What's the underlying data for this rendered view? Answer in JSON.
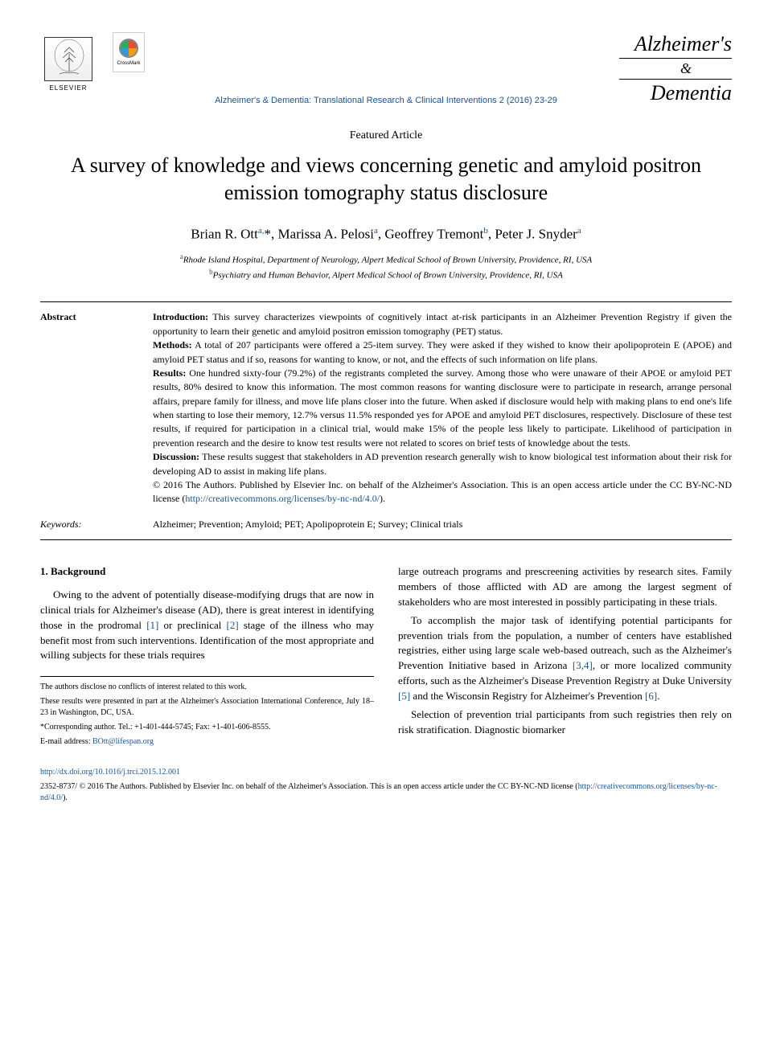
{
  "header": {
    "elsevier_label": "ELSEVIER",
    "crossmark_label": "CrossMark",
    "journal_logo": {
      "line1": "Alzheimer's",
      "line2": "&",
      "line3": "Dementia"
    },
    "citation": "Alzheimer's & Dementia: Translational Research & Clinical Interventions 2 (2016) 23-29"
  },
  "article": {
    "type": "Featured Article",
    "title": "A survey of knowledge and views concerning genetic and amyloid positron emission tomography status disclosure",
    "authors_html": "Brian R. Ott<sup class='sup'>a,</sup>*, Marissa A. Pelosi<sup class='sup'>a</sup>, Geoffrey Tremont<sup class='sup'>b</sup>, Peter J. Snyder<sup class='sup'>a</sup>",
    "affiliations": [
      {
        "sup": "a",
        "text": "Rhode Island Hospital, Department of Neurology, Alpert Medical School of Brown University, Providence, RI, USA"
      },
      {
        "sup": "b",
        "text": "Psychiatry and Human Behavior, Alpert Medical School of Brown University, Providence, RI, USA"
      }
    ]
  },
  "abstract": {
    "label": "Abstract",
    "keywords_label": "Keywords:",
    "sections": {
      "intro_label": "Introduction:",
      "intro_text": " This survey characterizes viewpoints of cognitively intact at-risk participants in an Alzheimer Prevention Registry if given the opportunity to learn their genetic and amyloid positron emission tomography (PET) status.",
      "methods_label": "Methods:",
      "methods_text": " A total of 207 participants were offered a 25-item survey. They were asked if they wished to know their apolipoprotein E (APOE) and amyloid PET status and if so, reasons for wanting to know, or not, and the effects of such information on life plans.",
      "results_label": "Results:",
      "results_text": " One hundred sixty-four (79.2%) of the registrants completed the survey. Among those who were unaware of their APOE or amyloid PET results, 80% desired to know this information. The most common reasons for wanting disclosure were to participate in research, arrange personal affairs, prepare family for illness, and move life plans closer into the future. When asked if disclosure would help with making plans to end one's life when starting to lose their memory, 12.7% versus 11.5% responded yes for APOE and amyloid PET disclosures, respectively. Disclosure of these test results, if required for participation in a clinical trial, would make 15% of the people less likely to participate. Likelihood of participation in prevention research and the desire to know test results were not related to scores on brief tests of knowledge about the tests.",
      "discussion_label": "Discussion:",
      "discussion_text": " These results suggest that stakeholders in AD prevention research generally wish to know biological test information about their risk for developing AD to assist in making life plans.",
      "copyright": "© 2016 The Authors. Published by Elsevier Inc. on behalf of the Alzheimer's Association. This is an open access article under the CC BY-NC-ND license (",
      "license_url": "http://creativecommons.org/licenses/by-nc-nd/4.0/",
      "copyright_end": ")."
    },
    "keywords": "Alzheimer; Prevention; Amyloid; PET; Apolipoprotein E; Survey; Clinical trials"
  },
  "body": {
    "section_heading": "1. Background",
    "col1_p1_a": "Owing to the advent of potentially disease-modifying drugs that are now in clinical trials for Alzheimer's disease (AD), there is great interest in identifying those in the prodromal ",
    "ref1": "[1]",
    "col1_p1_b": " or preclinical ",
    "ref2": "[2]",
    "col1_p1_c": " stage of the illness who may benefit most from such interventions. Identification of the most appropriate and willing subjects for these trials requires",
    "col2_p1": "large outreach programs and prescreening activities by research sites. Family members of those afflicted with AD are among the largest segment of stakeholders who are most interested in possibly participating in these trials.",
    "col2_p2_a": "To accomplish the major task of identifying potential participants for prevention trials from the population, a number of centers have established registries, either using large scale web-based outreach, such as the Alzheimer's Prevention Initiative based in Arizona ",
    "ref34": "[3,4]",
    "col2_p2_b": ", or more localized community efforts, such as the Alzheimer's Disease Prevention Registry at Duke University ",
    "ref5": "[5]",
    "col2_p2_c": " and the Wisconsin Registry for Alzheimer's Prevention ",
    "ref6": "[6]",
    "col2_p2_d": ".",
    "col2_p3": "Selection of prevention trial participants from such registries then rely on risk stratification. Diagnostic biomarker"
  },
  "footnotes": {
    "fn1": "The authors disclose no conflicts of interest related to this work.",
    "fn2": "These results were presented in part at the Alzheimer's Association International Conference, July 18–23 in Washington, DC, USA.",
    "fn3": "*Corresponding author. Tel.: +1-401-444-5745; Fax: +1-401-606-8555.",
    "fn4_label": "E-mail address: ",
    "fn4_email": "BOtt@lifespan.org"
  },
  "footer": {
    "doi": "http://dx.doi.org/10.1016/j.trci.2015.12.001",
    "issn_copyright": "2352-8737/ © 2016 The Authors. Published by Elsevier Inc. on behalf of the Alzheimer's Association. This is an open access article under the CC BY-NC-ND license (",
    "license_url": "http://creativecommons.org/licenses/by-nc-nd/4.0/",
    "end": ")."
  },
  "colors": {
    "link_color": "#1a5490",
    "text_color": "#000000",
    "background": "#ffffff"
  }
}
